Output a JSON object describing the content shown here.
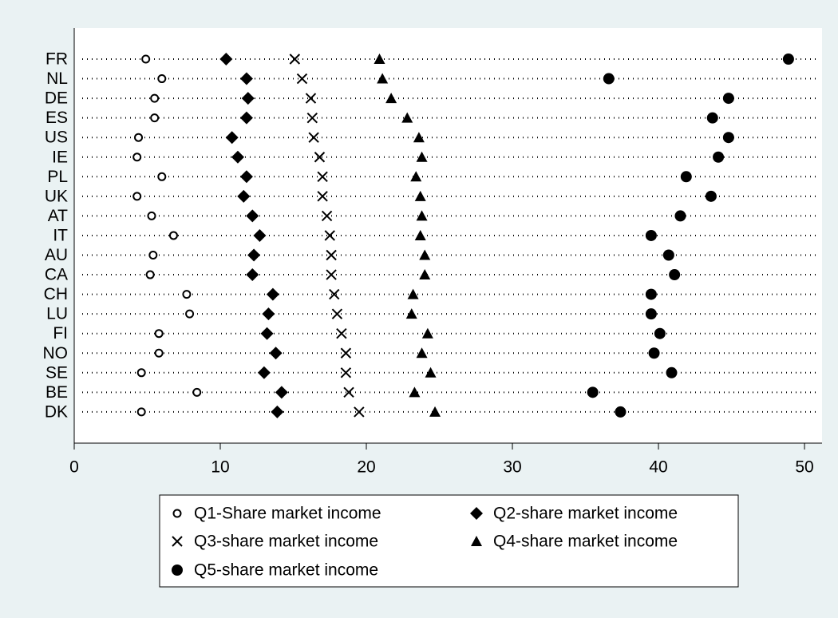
{
  "chart_data": {
    "type": "dot",
    "categories": [
      "FR",
      "NL",
      "DE",
      "ES",
      "US",
      "IE",
      "PL",
      "UK",
      "AT",
      "IT",
      "AU",
      "CA",
      "CH",
      "LU",
      "FI",
      "NO",
      "SE",
      "BE",
      "DK"
    ],
    "series": [
      {
        "name": "Q1-Share market income",
        "color": "#000000",
        "marker": "hollow-circle",
        "values": [
          4.9,
          6.0,
          5.5,
          5.5,
          4.4,
          4.3,
          6.0,
          4.3,
          5.3,
          6.8,
          5.4,
          5.2,
          7.7,
          7.9,
          5.8,
          5.8,
          4.6,
          8.4,
          4.6
        ]
      },
      {
        "name": "Q2-share market income",
        "color": "#000000",
        "marker": "diamond",
        "values": [
          10.4,
          11.8,
          11.9,
          11.8,
          10.8,
          11.2,
          11.8,
          11.6,
          12.2,
          12.7,
          12.3,
          12.2,
          13.6,
          13.3,
          13.2,
          13.8,
          13.0,
          14.2,
          13.9
        ]
      },
      {
        "name": "Q3-share market income",
        "color": "#000000",
        "marker": "cross",
        "values": [
          15.1,
          15.6,
          16.2,
          16.3,
          16.4,
          16.8,
          17.0,
          17.0,
          17.3,
          17.5,
          17.6,
          17.6,
          17.8,
          18.0,
          18.3,
          18.6,
          18.6,
          18.8,
          19.5
        ]
      },
      {
        "name": "Q4-share market income",
        "color": "#000000",
        "marker": "triangle",
        "values": [
          20.9,
          21.1,
          21.7,
          22.8,
          23.6,
          23.8,
          23.4,
          23.7,
          23.8,
          23.7,
          24.0,
          24.0,
          23.2,
          23.1,
          24.2,
          23.8,
          24.4,
          23.3,
          24.7
        ]
      },
      {
        "name": "Q5-share market income",
        "color": "#000000",
        "marker": "filled-circle",
        "values": [
          48.9,
          36.6,
          44.8,
          43.7,
          44.8,
          44.1,
          41.9,
          43.6,
          41.5,
          39.5,
          40.7,
          41.1,
          39.5,
          39.5,
          40.1,
          39.7,
          40.9,
          35.5,
          37.4
        ]
      }
    ],
    "xlim": [
      0,
      51.2
    ],
    "xticks": [
      0,
      10,
      20,
      30,
      40,
      50
    ]
  }
}
